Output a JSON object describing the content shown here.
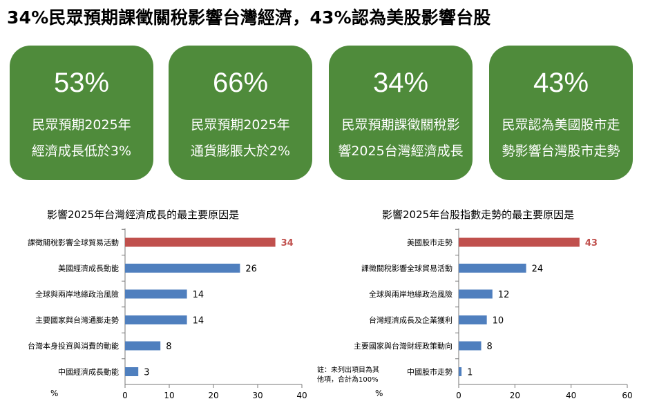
{
  "title": "34%民眾預期課徵關稅影響台灣經濟，43%認為美股影響台股",
  "cards": [
    {
      "value": "53%",
      "line1": "民眾預期2025年",
      "line2": "經濟成長低於3%"
    },
    {
      "value": "66%",
      "line1": "民眾預期2025年",
      "line2": "通貨膨脹大於2%"
    },
    {
      "value": "34%",
      "line1": "民眾預期課徵關稅影",
      "line2": "響2025台灣經濟成長"
    },
    {
      "value": "43%",
      "line1": "民眾認為美國股市走",
      "line2": "勢影響台灣股市走勢"
    }
  ],
  "colors": {
    "card_bg": "#4f8b3b",
    "bar": "#4f7fbe",
    "highlight": "#c0504d"
  },
  "note": {
    "line1": "註：未列出項目為其",
    "line2": "他項，合計為100%"
  },
  "chart_data": [
    {
      "type": "bar",
      "orientation": "horizontal",
      "title": "影響2025年台灣經濟成長的最主要原因是",
      "ylabel": "%",
      "categories": [
        "課徵關稅影響全球貿易活動",
        "美國經濟成長動能",
        "全球與兩岸地緣政治風險",
        "主要國家與台灣通膨走勢",
        "台灣本身投資與消費的動能",
        "中國經濟成長動能"
      ],
      "values": [
        34,
        26,
        14,
        14,
        8,
        3
      ],
      "highlight_index": 0,
      "xlim": [
        0,
        40
      ],
      "xticks": [
        0,
        10,
        20,
        30,
        40
      ],
      "grid": false
    },
    {
      "type": "bar",
      "orientation": "horizontal",
      "title": "影響2025年台股指數走勢的最主要原因是",
      "ylabel": "%",
      "categories": [
        "美國股市走勢",
        "課徵關稅影響全球貿易活動",
        "全球與兩岸地緣政治風險",
        "台灣經濟成長及企業獲利",
        "主要國家與台灣財經政策動向",
        "中國股市走勢"
      ],
      "values": [
        43,
        24,
        12,
        10,
        8,
        1
      ],
      "highlight_index": 0,
      "xlim": [
        0,
        60
      ],
      "xticks": [
        0,
        20,
        40,
        60
      ],
      "grid": false
    }
  ]
}
